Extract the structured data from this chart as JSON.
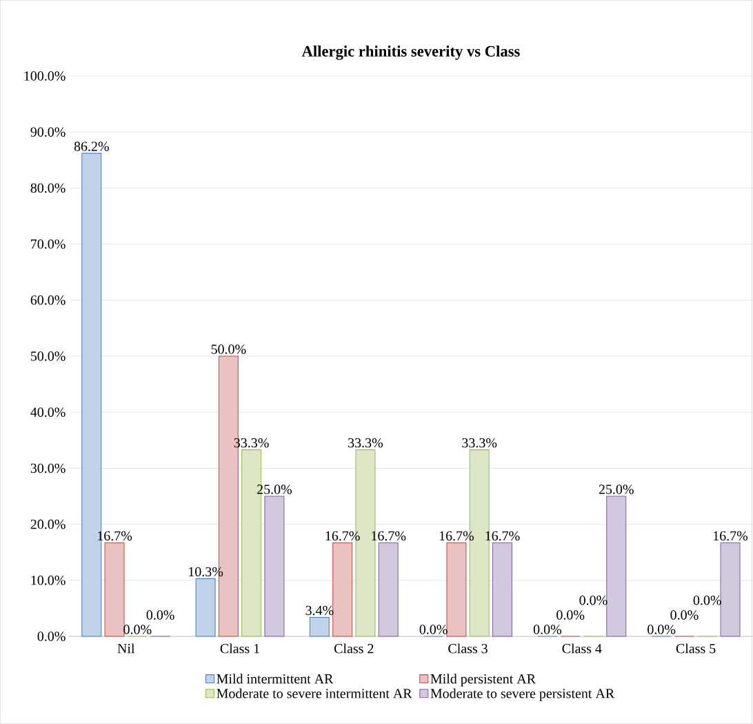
{
  "chart_data": {
    "type": "bar",
    "title": "Allergic rhinitis severity vs Class",
    "categories": [
      "Nil",
      "Class 1",
      "Class 2",
      "Class 3",
      "Class 4",
      "Class 5"
    ],
    "series": [
      {
        "name": "Mild intermittent AR",
        "color": "#4f81bd",
        "values": [
          86.2,
          10.3,
          3.4,
          0.0,
          0.0,
          0.0
        ],
        "value_labels": [
          "86.2%",
          "10.3%",
          "3.4%",
          "0.0%",
          "0.0%",
          "0.0%"
        ]
      },
      {
        "name": "Mild persistent AR",
        "color": "#c0504d",
        "values": [
          16.7,
          50.0,
          16.7,
          16.7,
          0.0,
          0.0
        ],
        "value_labels": [
          "16.7%",
          "50.0%",
          "16.7%",
          "16.7%",
          "0.0%",
          "0.0%"
        ]
      },
      {
        "name": "Moderate to severe intermittent AR",
        "color": "#9bbb59",
        "values": [
          0.0,
          33.3,
          33.3,
          33.3,
          0.0,
          0.0
        ],
        "value_labels": [
          "0.0%",
          "33.3%",
          "33.3%",
          "33.3%",
          "0.0%",
          "0.0%"
        ]
      },
      {
        "name": "Moderate to severe persistent AR",
        "color": "#8064a2",
        "values": [
          0.0,
          25.0,
          16.7,
          16.7,
          25.0,
          16.7
        ],
        "value_labels": [
          "0.0%",
          "25.0%",
          "16.7%",
          "16.7%",
          "25.0%",
          "16.7%"
        ]
      }
    ],
    "ylim": [
      0,
      100
    ],
    "yticks": [
      {
        "value": 0,
        "label": "0.0%"
      },
      {
        "value": 10,
        "label": "10.0%"
      },
      {
        "value": 20,
        "label": "20.0%"
      },
      {
        "value": 30,
        "label": "30.0%"
      },
      {
        "value": 40,
        "label": "40.0%"
      },
      {
        "value": 50,
        "label": "50.0%"
      },
      {
        "value": 60,
        "label": "60.0%"
      },
      {
        "value": 70,
        "label": "70.0%"
      },
      {
        "value": 80,
        "label": "80.0%"
      },
      {
        "value": 90,
        "label": "90.0%"
      },
      {
        "value": 100,
        "label": "100.0%"
      }
    ],
    "grid": "y",
    "legend": "bottom"
  }
}
